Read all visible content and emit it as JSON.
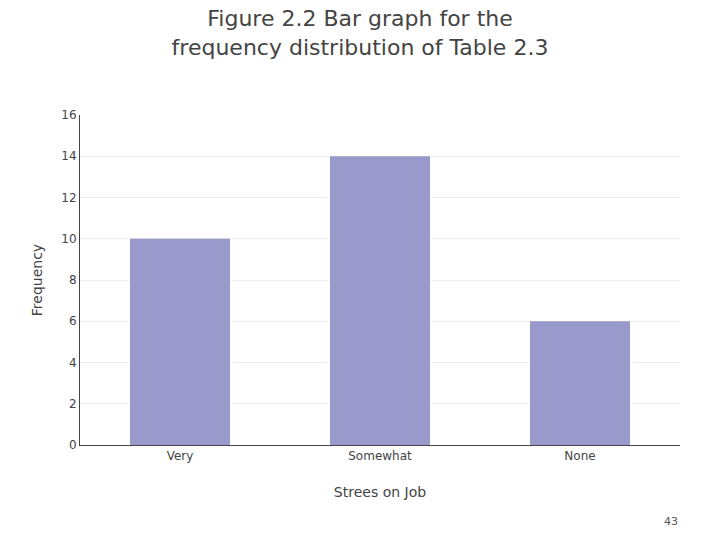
{
  "chart_data": {
    "type": "bar",
    "title": "Figure 2.2 Bar graph for the\nfrequency distribution of Table 2.3",
    "x_label": "Strees on Job",
    "y_label": "Frequency",
    "categories": [
      "Very",
      "Somewhat",
      "None"
    ],
    "values": [
      10,
      14,
      6
    ],
    "color": "#9999CC",
    "ylim": [
      0,
      16
    ],
    "yticks": [
      0,
      2,
      4,
      6,
      8,
      10,
      12,
      14,
      16
    ],
    "grid": true,
    "annotations": [
      {
        "text": "43"
      }
    ]
  }
}
